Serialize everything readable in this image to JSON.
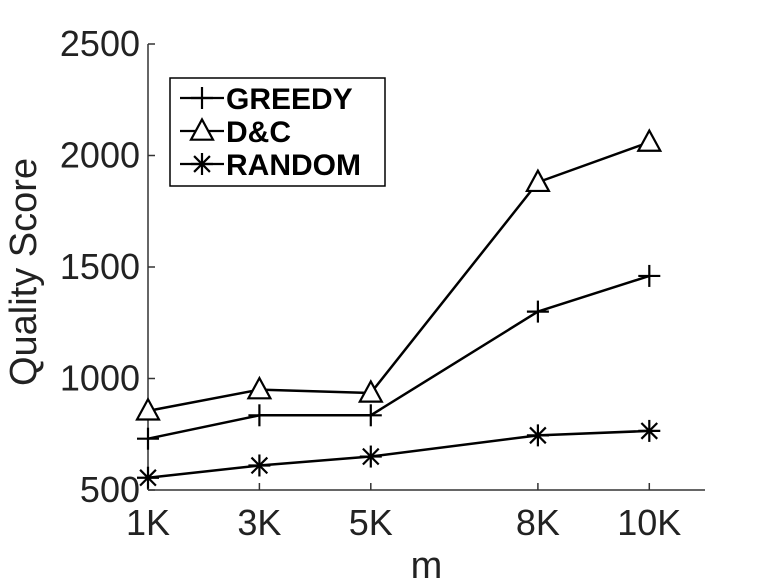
{
  "chart_data": {
    "type": "line",
    "title": "",
    "xlabel": "m",
    "ylabel": "Quality Score",
    "x": [
      1,
      3,
      5,
      8,
      10
    ],
    "x_tick_labels": [
      "1K",
      "3K",
      "5K",
      "8K",
      "10K"
    ],
    "xlim": [
      1,
      11
    ],
    "ylim": [
      500,
      2500
    ],
    "y_ticks": [
      500,
      1000,
      1500,
      2000,
      2500
    ],
    "grid": false,
    "legend_placement": "top-left",
    "series": [
      {
        "name": "GREEDY",
        "marker": "plus",
        "values": [
          730,
          835,
          835,
          1300,
          1460
        ]
      },
      {
        "name": "D&C",
        "marker": "triangle",
        "values": [
          855,
          950,
          935,
          1880,
          2060
        ]
      },
      {
        "name": "RANDOM",
        "marker": "star",
        "values": [
          555,
          610,
          650,
          745,
          765
        ]
      }
    ],
    "line_color": "#000000"
  }
}
